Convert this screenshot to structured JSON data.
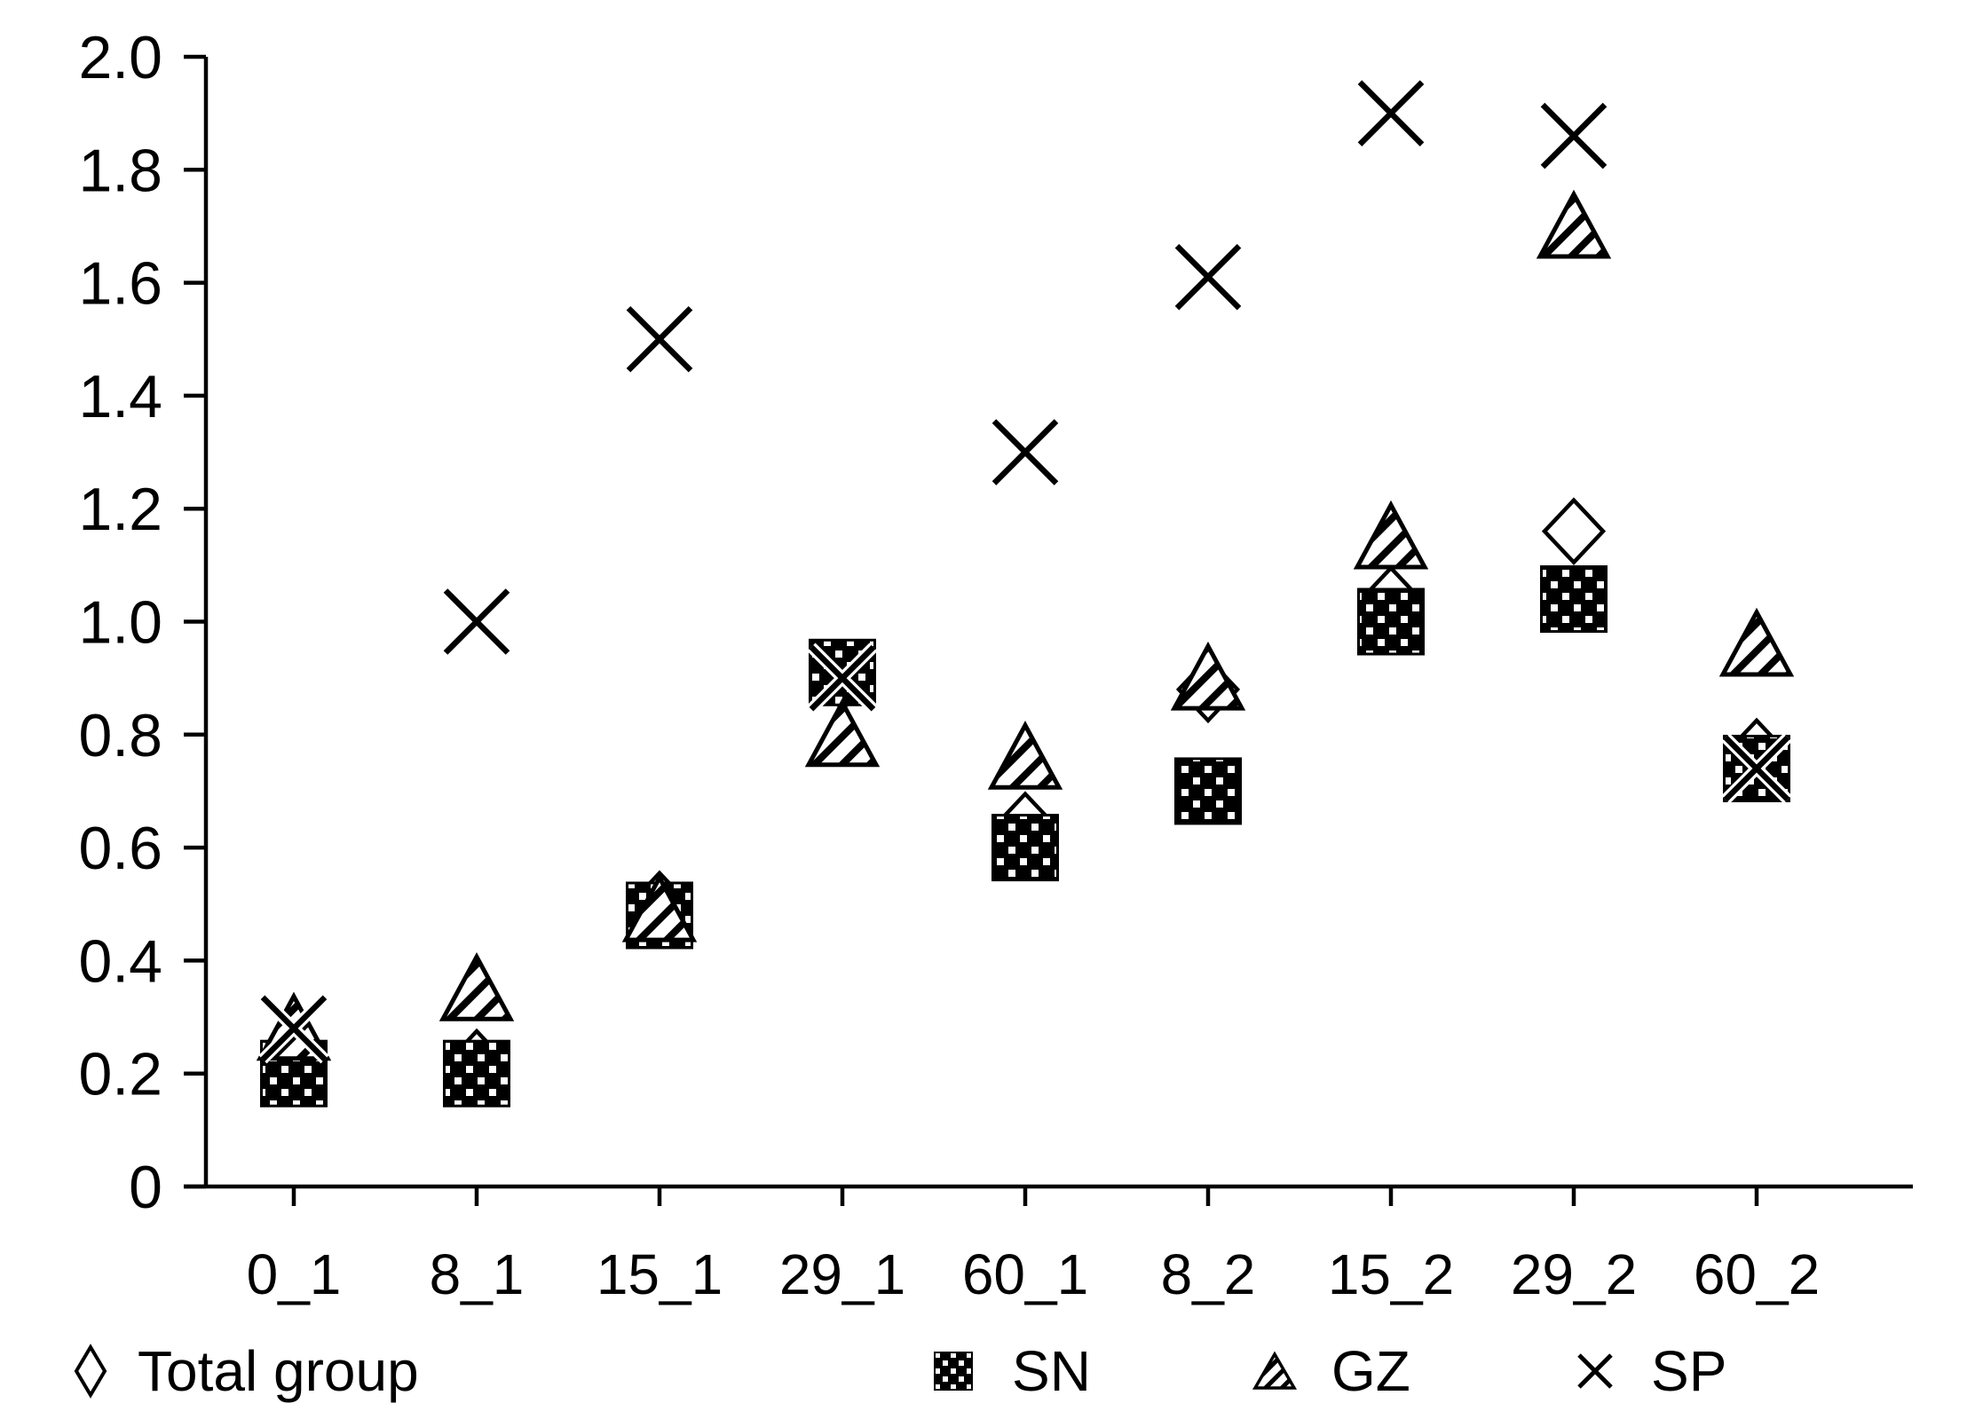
{
  "chart_data": {
    "type": "scatter",
    "title": "",
    "xlabel": "",
    "ylabel": "",
    "categories": [
      "0_1",
      "8_1",
      "15_1",
      "29_1",
      "60_1",
      "8_2",
      "15_2",
      "29_2",
      "60_2"
    ],
    "series": [
      {
        "name": "Total group",
        "marker": "diamond-outline",
        "values": [
          0.21,
          0.22,
          0.5,
          0.9,
          0.64,
          0.88,
          1.04,
          1.16,
          0.77
        ]
      },
      {
        "name": "SN",
        "marker": "square-dotted",
        "values": [
          0.2,
          0.2,
          0.48,
          0.91,
          0.6,
          0.7,
          1.0,
          1.04,
          0.74
        ]
      },
      {
        "name": "GZ",
        "marker": "triangle-hatched",
        "values": [
          0.28,
          0.35,
          0.49,
          0.8,
          0.76,
          0.9,
          1.15,
          1.7,
          0.96
        ]
      },
      {
        "name": "SP",
        "marker": "x-cross",
        "values": [
          0.28,
          1.0,
          1.5,
          0.9,
          1.3,
          1.61,
          1.9,
          1.86,
          0.74
        ]
      }
    ],
    "ylim": [
      0,
      2.0
    ],
    "yticks": [
      {
        "value": 2.0,
        "label": "2.0"
      },
      {
        "value": 1.8,
        "label": "1.8"
      },
      {
        "value": 1.6,
        "label": "1.6"
      },
      {
        "value": 1.4,
        "label": "1.4"
      },
      {
        "value": 1.2,
        "label": "1.2"
      },
      {
        "value": 1.0,
        "label": "1.0"
      },
      {
        "value": 0.8,
        "label": "0.8"
      },
      {
        "value": 0.6,
        "label": "0.6"
      },
      {
        "value": 0.4,
        "label": "0.4"
      },
      {
        "value": 0.2,
        "label": "0.2"
      },
      {
        "value": 0.0,
        "label": "0"
      }
    ],
    "grid": false,
    "legend_position": "bottom",
    "colors": {
      "foreground": "#000000",
      "background": "#ffffff"
    }
  },
  "legend": {
    "items": [
      {
        "label": "Total group",
        "icon": "diamond-icon"
      },
      {
        "label": "SN",
        "icon": "dotted-square-icon"
      },
      {
        "label": "GZ",
        "icon": "hatched-triangle-icon"
      },
      {
        "label": "SP",
        "icon": "x-cross-icon"
      }
    ]
  }
}
